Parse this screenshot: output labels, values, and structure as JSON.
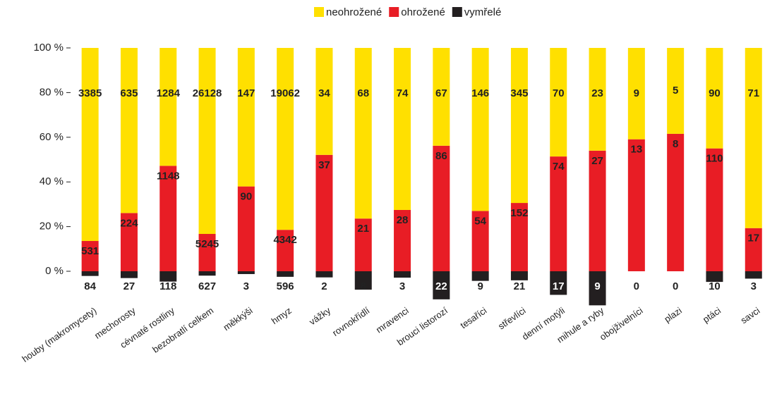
{
  "chart_data": {
    "type": "bar",
    "stacked": "percent",
    "categories": [
      "houby (makromycety)",
      "mechorosty",
      "cévnaté rostliny",
      "bezobratlí celkem",
      "měkkýši",
      "hmyz",
      "vážky",
      "rovnokřídlí",
      "mravenci",
      "brouci listorozí",
      "tesaříci",
      "střevlíci",
      "denní motýli",
      "mihule a ryby",
      "obojživelníci",
      "plazi",
      "ptáci",
      "savci"
    ],
    "series": [
      {
        "name": "neohrožené",
        "color": "#ffe000",
        "values": [
          3385,
          635,
          1284,
          26128,
          147,
          19062,
          34,
          68,
          74,
          67,
          146,
          345,
          70,
          23,
          9,
          5,
          90,
          71
        ]
      },
      {
        "name": "ohrožené",
        "color": "#e81d25",
        "values": [
          531,
          224,
          1148,
          5245,
          90,
          4342,
          37,
          21,
          28,
          86,
          54,
          152,
          74,
          27,
          13,
          8,
          110,
          17
        ]
      },
      {
        "name": "vymřelé",
        "color": "#231f20",
        "direction": "down",
        "values": [
          84,
          27,
          118,
          627,
          3,
          596,
          2,
          8,
          3,
          22,
          9,
          21,
          17,
          9,
          0,
          0,
          10,
          3
        ]
      }
    ],
    "ylim": [
      -20,
      100
    ],
    "yticks": [
      {
        "value": 0,
        "label": "0 %"
      },
      {
        "value": 20,
        "label": "20 %"
      },
      {
        "value": 40,
        "label": "40 %"
      },
      {
        "value": 60,
        "label": "60 %"
      },
      {
        "value": 80,
        "label": "80 %"
      },
      {
        "value": 100,
        "label": "100 %"
      }
    ],
    "legend": "top"
  }
}
